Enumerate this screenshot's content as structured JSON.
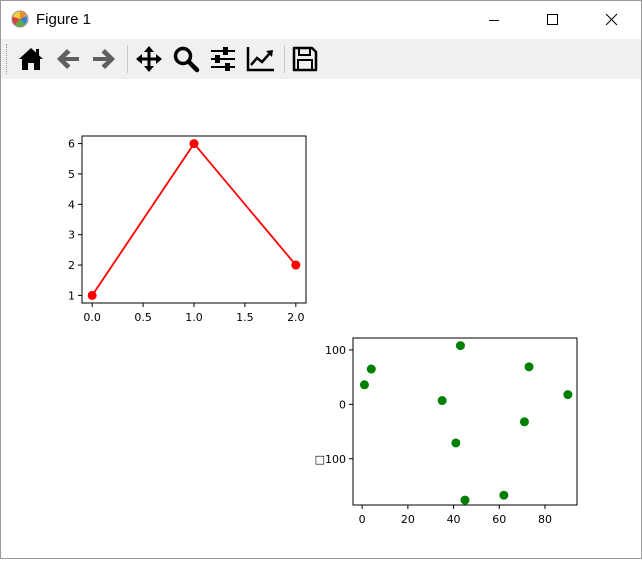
{
  "window": {
    "title": "Figure 1"
  },
  "toolbar": {
    "buttons": [
      {
        "name": "home",
        "icon": "home-icon"
      },
      {
        "name": "back",
        "icon": "arrow-left-icon"
      },
      {
        "name": "forward",
        "icon": "arrow-right-icon"
      },
      {
        "name": "pan",
        "icon": "move-icon"
      },
      {
        "name": "zoom",
        "icon": "magnifier-icon"
      },
      {
        "name": "configure-subplots",
        "icon": "sliders-icon"
      },
      {
        "name": "edit-axis",
        "icon": "line-chart-icon"
      },
      {
        "name": "save",
        "icon": "floppy-disk-icon"
      }
    ]
  },
  "chart_data": [
    {
      "type": "line",
      "x": [
        0,
        1,
        2
      ],
      "y": [
        1,
        6,
        2
      ],
      "marker": "o",
      "color": "#ff0000",
      "xlim": [
        -0.1,
        2.1
      ],
      "ylim": [
        0.75,
        6.25
      ],
      "xticks": [
        "0.0",
        "0.5",
        "1.0",
        "1.5",
        "2.0"
      ],
      "yticks": [
        "1",
        "2",
        "3",
        "4",
        "5",
        "6"
      ],
      "grid": false
    },
    {
      "type": "scatter",
      "x": [
        1,
        4,
        35,
        41,
        43,
        45,
        62,
        71,
        73,
        90
      ],
      "y": [
        36,
        65,
        7,
        -71,
        108,
        -176,
        -167,
        -32,
        69,
        18
      ],
      "color": "#008000",
      "xlim": [
        -4,
        94
      ],
      "ylim": [
        -185,
        122
      ],
      "xticks": [
        "0",
        "20",
        "40",
        "60",
        "80"
      ],
      "yticks": [
        "100",
        "0",
        "□100"
      ],
      "grid": false
    }
  ]
}
